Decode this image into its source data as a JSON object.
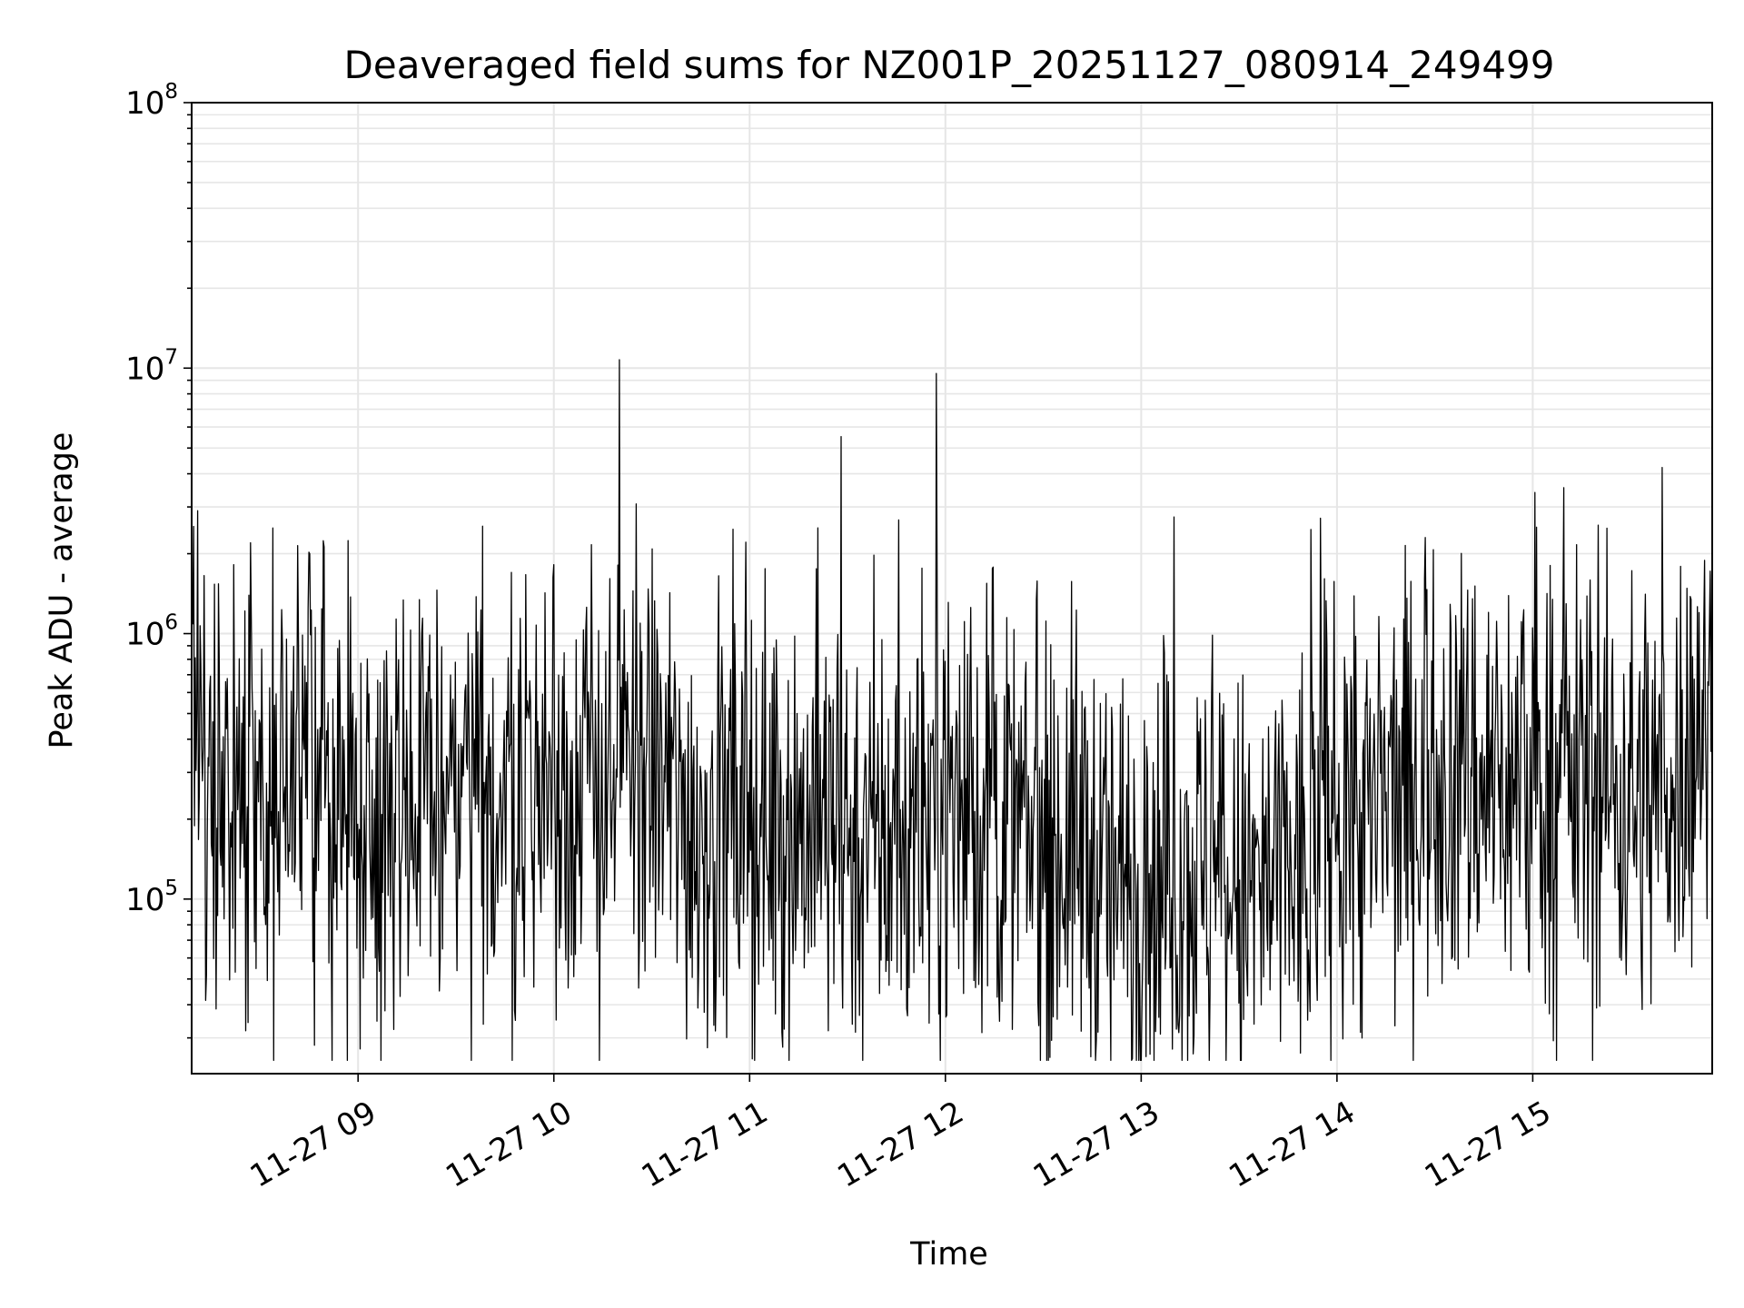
{
  "chart_data": {
    "type": "line",
    "title": "Deaveraged field sums for NZ001P_20251127_080914_249499",
    "xlabel": "Time",
    "ylabel": "Peak ADU - average",
    "xscale": "time",
    "yscale": "log",
    "xlim": [
      "2025-11-27 08:09",
      "2025-11-27 15:55"
    ],
    "ylim": [
      22000,
      100000000
    ],
    "x_ticks": [
      {
        "value": "2025-11-27 09:00",
        "label": "11-27 09"
      },
      {
        "value": "2025-11-27 10:00",
        "label": "11-27 10"
      },
      {
        "value": "2025-11-27 11:00",
        "label": "11-27 11"
      },
      {
        "value": "2025-11-27 12:00",
        "label": "11-27 12"
      },
      {
        "value": "2025-11-27 13:00",
        "label": "11-27 13"
      },
      {
        "value": "2025-11-27 14:00",
        "label": "11-27 14"
      },
      {
        "value": "2025-11-27 15:00",
        "label": "11-27 15"
      }
    ],
    "y_ticks": [
      {
        "value": 100000,
        "base": "10",
        "exp": "5"
      },
      {
        "value": 1000000,
        "base": "10",
        "exp": "6"
      },
      {
        "value": 10000000,
        "base": "10",
        "exp": "7"
      },
      {
        "value": 100000000,
        "base": "10",
        "exp": "8"
      }
    ],
    "grid": true,
    "minor_grid": true,
    "line_color": "#000000",
    "grid_color": "#e6e6e6",
    "series": [
      {
        "x": [
          "2025-11-27 08:10",
          "2025-11-27 08:20",
          "2025-11-27 08:30",
          "2025-11-27 08:40",
          "2025-11-27 08:50",
          "2025-11-27 09:00",
          "2025-11-27 09:10",
          "2025-11-27 09:20",
          "2025-11-27 09:30",
          "2025-11-27 09:40",
          "2025-11-27 09:50",
          "2025-11-27 10:00",
          "2025-11-27 10:10",
          "2025-11-27 10:20",
          "2025-11-27 10:30",
          "2025-11-27 10:40",
          "2025-11-27 10:50",
          "2025-11-27 11:00",
          "2025-11-27 11:10",
          "2025-11-27 11:20",
          "2025-11-27 11:30",
          "2025-11-27 11:40",
          "2025-11-27 11:50",
          "2025-11-27 12:00",
          "2025-11-27 12:10",
          "2025-11-27 12:20",
          "2025-11-27 12:30",
          "2025-11-27 12:40",
          "2025-11-27 12:50",
          "2025-11-27 13:00",
          "2025-11-27 13:10",
          "2025-11-27 13:20",
          "2025-11-27 13:30",
          "2025-11-27 13:40",
          "2025-11-27 13:50",
          "2025-11-27 14:00",
          "2025-11-27 14:10",
          "2025-11-27 14:20",
          "2025-11-27 14:30",
          "2025-11-27 14:40",
          "2025-11-27 14:50",
          "2025-11-27 15:00",
          "2025-11-27 15:10",
          "2025-11-27 15:20",
          "2025-11-27 15:30",
          "2025-11-27 15:40",
          "2025-11-27 15:50"
        ],
        "y": [
          400000,
          260000,
          210000,
          310000,
          260000,
          230000,
          250000,
          220000,
          230000,
          220000,
          300000,
          240000,
          280000,
          300000,
          300000,
          210000,
          180000,
          190000,
          200000,
          190000,
          180000,
          160000,
          180000,
          260000,
          210000,
          180000,
          150000,
          170000,
          110000,
          120000,
          130000,
          120000,
          100000,
          110000,
          130000,
          250000,
          190000,
          250000,
          320000,
          300000,
          280000,
          260000,
          280000,
          280000,
          240000,
          260000,
          420000
        ],
        "peaks": [
          {
            "x": "2025-11-27 08:27",
            "y": 2200000
          },
          {
            "x": "2025-11-27 09:47",
            "y": 1700000
          },
          {
            "x": "2025-11-27 11:21",
            "y": 2500000
          },
          {
            "x": "2025-11-27 14:27",
            "y": 2300000
          },
          {
            "x": "2025-11-27 15:51",
            "y": 1200000
          }
        ],
        "troughs": [
          {
            "x": "2025-11-27 09:48",
            "y": 38000
          },
          {
            "x": "2025-11-27 12:33",
            "y": 36000
          },
          {
            "x": "2025-11-27 13:06",
            "y": 31000
          },
          {
            "x": "2025-11-27 13:51",
            "y": 35000
          }
        ],
        "noise_decades": 0.42
      }
    ]
  }
}
